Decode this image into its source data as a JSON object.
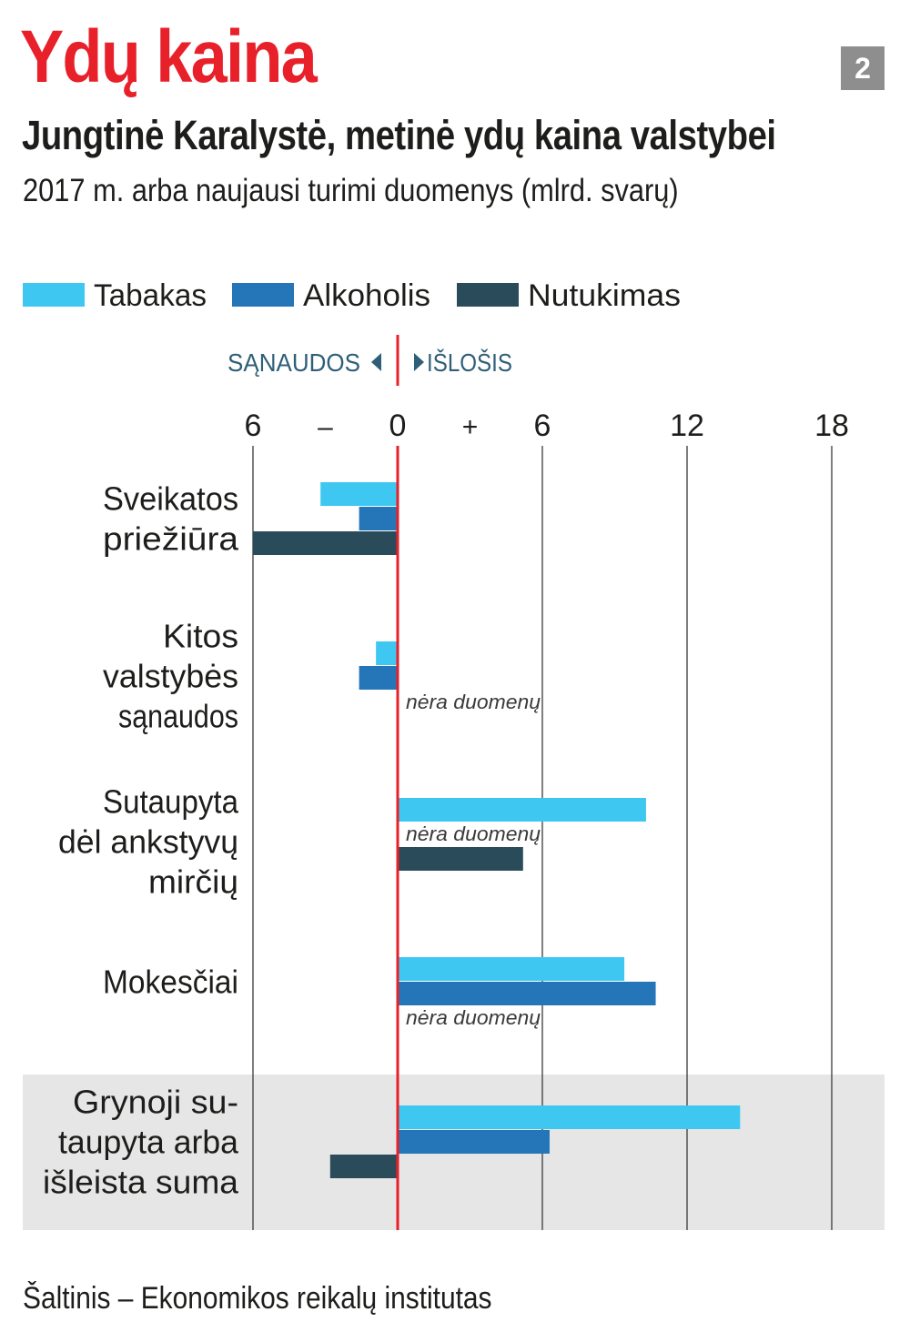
{
  "header": {
    "headline": "Ydų kaina",
    "badge": "2",
    "title": "Jungtinė Karalystė, metinė ydų kaina valstybei",
    "subtitle": "2017 m. arba naujausi turimi duomenys (mlrd. svarų)"
  },
  "footer": {
    "source": "Šaltinis – Ekonomikos reikalų institutas"
  },
  "colors": {
    "headline": "#e8202a",
    "zero_line": "#e8202a",
    "direction_text": "#2f5f78",
    "highlight_band": "#e6e6e6"
  },
  "chart_data": {
    "type": "bar",
    "orientation": "horizontal",
    "direction_labels": {
      "negative": "SĄNAUDOS",
      "positive": "IŠLOŠIS"
    },
    "x_ticks": [
      "6",
      "–",
      "0",
      "+",
      "6",
      "12",
      "18"
    ],
    "x_tick_values": [
      -6,
      -3,
      0,
      3,
      6,
      12,
      18
    ],
    "xlim": [
      -6,
      18
    ],
    "grid": true,
    "legend_position": "top-left",
    "categories": [
      {
        "name": "health-care",
        "label_lines": [
          "Sveikatos",
          "priežiūra"
        ],
        "highlighted": false
      },
      {
        "name": "other-state-costs",
        "label_lines": [
          "Kitos",
          "valstybės",
          "sąnaudos"
        ],
        "highlighted": false
      },
      {
        "name": "early-deaths-savings",
        "label_lines": [
          "Sutaupyta",
          "dėl ankstyvų",
          "mirčių"
        ],
        "highlighted": false
      },
      {
        "name": "taxes",
        "label_lines": [
          "Mokesčiai"
        ],
        "highlighted": false
      },
      {
        "name": "net-total",
        "label_lines": [
          "Grynoji su-",
          "taupyta arba",
          "išleista suma"
        ],
        "highlighted": true
      }
    ],
    "series": [
      {
        "name": "Tabakas",
        "color": "#3ec8f1",
        "values": [
          -3.2,
          -0.9,
          10.3,
          9.4,
          14.2
        ]
      },
      {
        "name": "Alkoholis",
        "color": "#2476b8",
        "values": [
          -1.6,
          -1.6,
          null,
          10.7,
          6.3
        ]
      },
      {
        "name": "Nutukimas",
        "color": "#2a4b5a",
        "values": [
          -6.0,
          null,
          5.2,
          null,
          -2.8
        ]
      }
    ],
    "no_data_label": "nėra duomenų"
  }
}
